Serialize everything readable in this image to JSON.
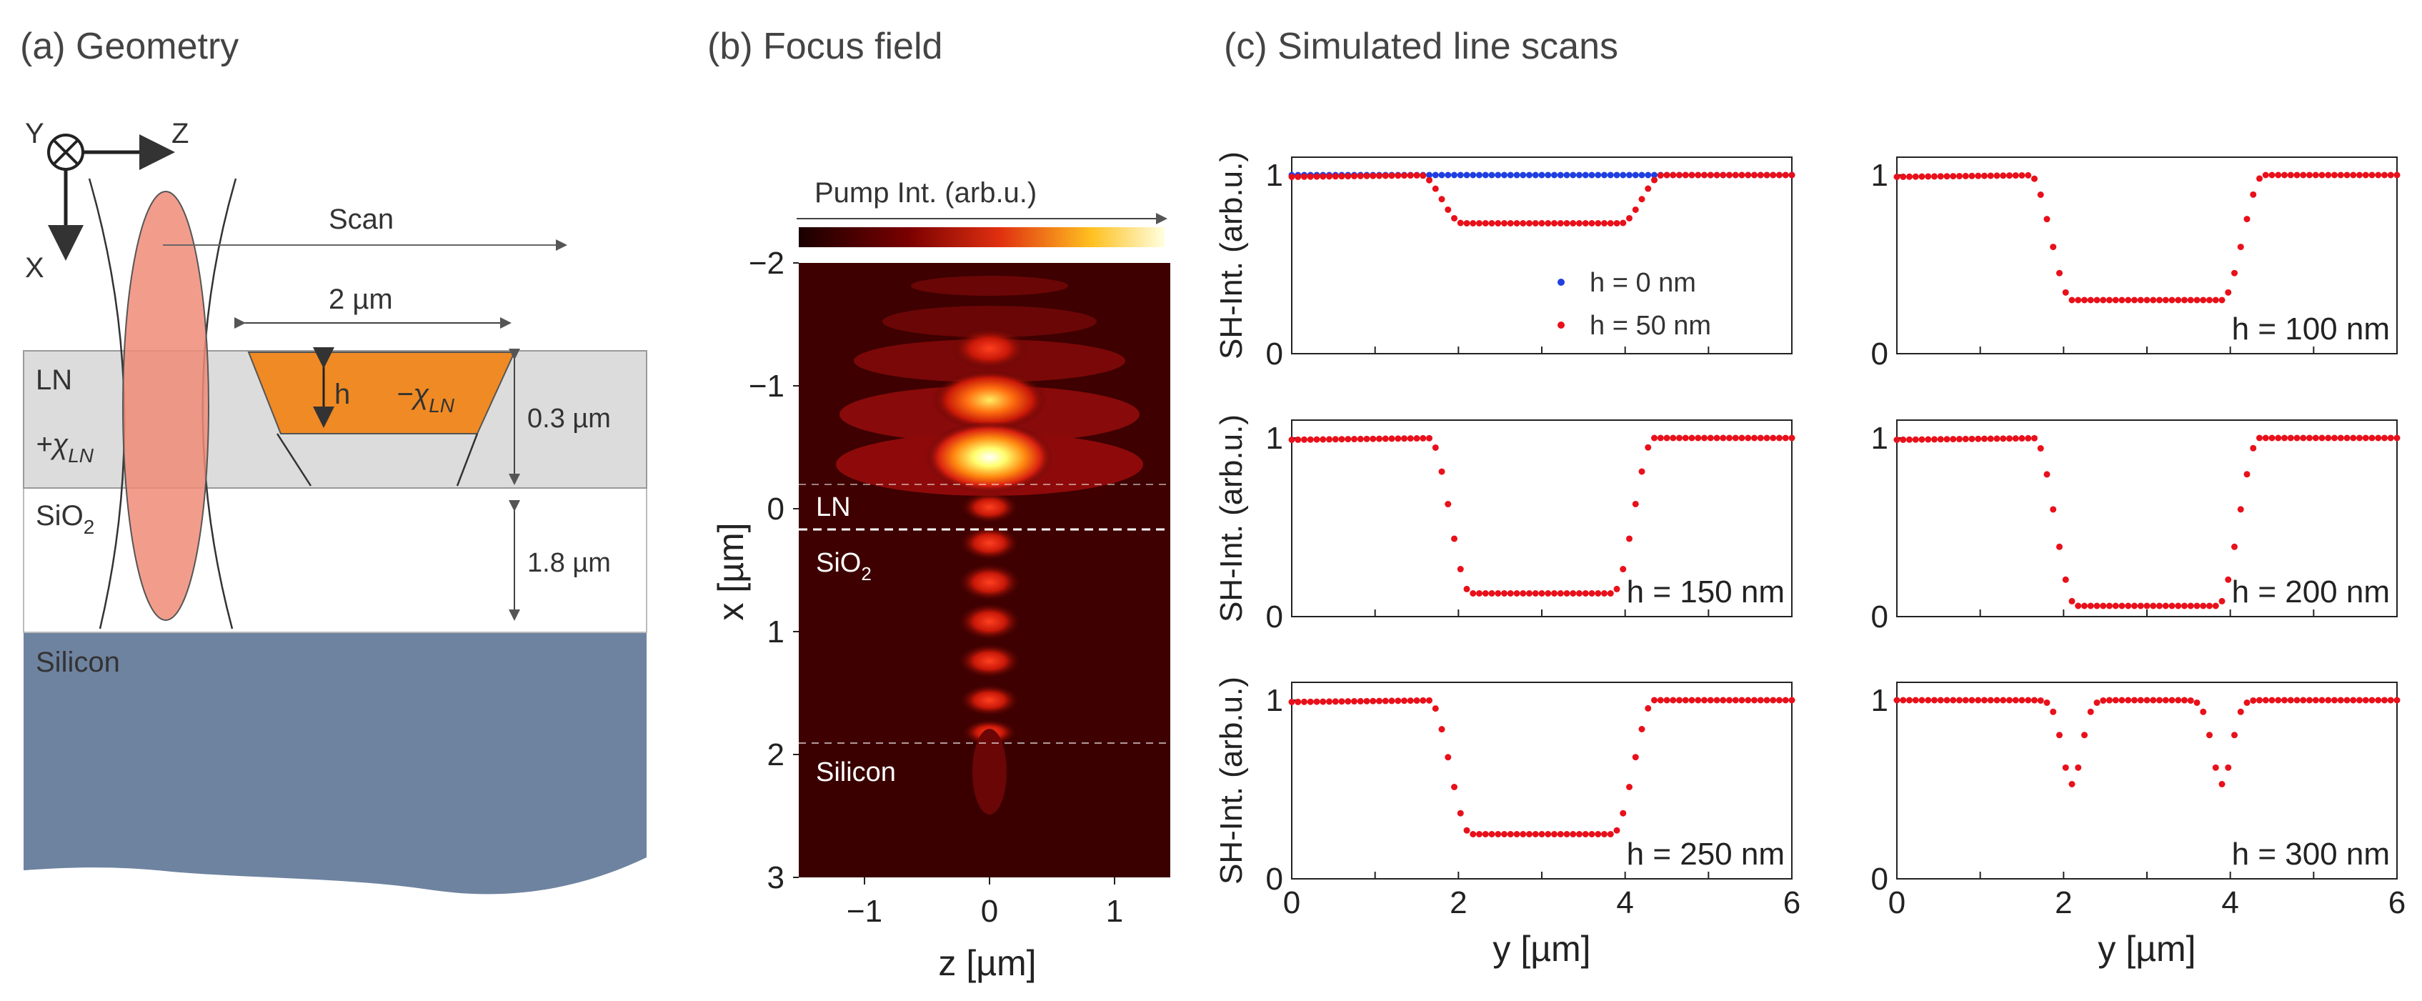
{
  "panels": {
    "a": {
      "title": "(a) Geometry",
      "axes": {
        "y": "Y",
        "z": "Z",
        "x": "X"
      },
      "scan": "Scan",
      "width": "2 µm",
      "h": "h",
      "chi_neg": "−χ",
      "chi_pos": "+χ",
      "chi_sub": "LN",
      "ln_thickness": "0.3 µm",
      "sio2_thickness": "1.8 µm",
      "layers": {
        "ln": "LN",
        "sio2": "SiO",
        "sio2_sub": "2",
        "silicon": "Silicon"
      },
      "colors": {
        "ln": "#dcdcdc",
        "domain": "#f08a24",
        "beam": "#f08c78",
        "silicon": "#6e83a0"
      }
    },
    "b": {
      "title": "(b) Focus field",
      "colorbar_label": "Pump Int. (arb.u.)",
      "xlabel": "z [µm]",
      "ylabel": "x [µm]",
      "xticks": [
        "−1",
        "0",
        "1"
      ],
      "yticks": [
        "−2",
        "−1",
        "0",
        "1",
        "2",
        "3"
      ],
      "layers": {
        "ln": "LN",
        "sio2": "SiO",
        "sio2_sub": "2",
        "silicon": "Silicon"
      }
    },
    "c": {
      "title": "(c) Simulated line scans",
      "ylabel": "SH-Int. (arb.u.)",
      "xlabel": "y [µm]",
      "xticks": [
        "0",
        "2",
        "4",
        "6"
      ],
      "yticks": [
        "0",
        "1"
      ],
      "legend": [
        "h = 0 nm",
        "h = 50 nm"
      ],
      "colors": {
        "blue": "#1f3fe0",
        "red": "#e8101a"
      }
    }
  },
  "chart_data": [
    {
      "type": "scatter",
      "label": "h = 0 nm / h = 50 nm",
      "x_range": [
        0,
        6
      ],
      "ylim": [
        0,
        1.1
      ],
      "series": [
        {
          "name": "h = 0 nm",
          "plateau_min": 1.0,
          "color": "#1f3fe0"
        },
        {
          "name": "h = 50 nm",
          "plateau_min": 0.73,
          "edges": [
            1.8,
            4.2
          ],
          "color": "#e8101a"
        }
      ]
    },
    {
      "type": "scatter",
      "label": "h = 100 nm",
      "x_range": [
        0,
        6
      ],
      "ylim": [
        0,
        1.1
      ],
      "series": [
        {
          "name": "h = 100 nm",
          "plateau_min": 0.3,
          "edges": [
            1.85,
            4.15
          ]
        }
      ]
    },
    {
      "type": "scatter",
      "label": "h = 150 nm",
      "x_range": [
        0,
        6
      ],
      "ylim": [
        0,
        1.1
      ],
      "series": [
        {
          "name": "h = 150 nm",
          "plateau_min": 0.13,
          "edges": [
            1.9,
            4.1
          ]
        }
      ]
    },
    {
      "type": "scatter",
      "label": "h = 200 nm",
      "x_range": [
        0,
        6
      ],
      "ylim": [
        0,
        1.1
      ],
      "series": [
        {
          "name": "h = 200 nm",
          "plateau_min": 0.06,
          "edges": [
            1.9,
            4.1
          ]
        }
      ]
    },
    {
      "type": "scatter",
      "label": "h = 250 nm",
      "x_range": [
        0,
        6
      ],
      "ylim": [
        0,
        1.1
      ],
      "series": [
        {
          "name": "h = 250 nm",
          "plateau_min": 0.25,
          "edges": [
            1.9,
            4.1
          ]
        }
      ]
    },
    {
      "type": "scatter",
      "label": "h = 300 nm",
      "x_range": [
        0,
        6
      ],
      "ylim": [
        0,
        1.1
      ],
      "series": [
        {
          "name": "h = 300 nm",
          "dips": [
            {
              "center": 2.1,
              "min": 0.53
            },
            {
              "center": 3.9,
              "min": 0.53
            }
          ]
        }
      ]
    }
  ]
}
